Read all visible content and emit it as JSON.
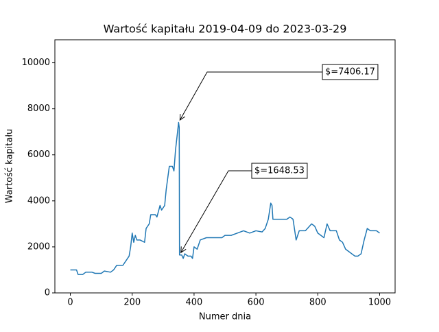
{
  "chart_data": {
    "type": "line",
    "title": "Wartość kapitału 2019-04-09 do 2023-03-29",
    "xlabel": "Numer dnia",
    "ylabel": "Wartość kapitału",
    "x": [
      0,
      20,
      25,
      40,
      50,
      70,
      80,
      100,
      110,
      130,
      140,
      150,
      170,
      180,
      190,
      195,
      200,
      205,
      210,
      215,
      225,
      240,
      245,
      255,
      260,
      275,
      280,
      290,
      295,
      305,
      310,
      315,
      320,
      330,
      335,
      340,
      345,
      350,
      352,
      353,
      360,
      365,
      370,
      380,
      390,
      395,
      400,
      410,
      420,
      440,
      480,
      490,
      500,
      520,
      540,
      560,
      580,
      600,
      620,
      630,
      640,
      648,
      652,
      655,
      700,
      710,
      720,
      730,
      740,
      760,
      780,
      790,
      800,
      820,
      830,
      840,
      860,
      870,
      880,
      890,
      900,
      910,
      920,
      930,
      940,
      950,
      960,
      970,
      990,
      1000
    ],
    "series": [
      {
        "name": "Wartość kapitału",
        "color": "#1f77b4",
        "values": [
          1000,
          1000,
          800,
          800,
          900,
          900,
          850,
          850,
          950,
          900,
          1000,
          1200,
          1200,
          1400,
          1600,
          2000,
          2600,
          2200,
          2500,
          2300,
          2300,
          2200,
          2800,
          3000,
          3400,
          3400,
          3300,
          3800,
          3600,
          3800,
          4500,
          5000,
          5500,
          5500,
          5300,
          6200,
          6800,
          7406.17,
          7200,
          1648.53,
          1648,
          1500,
          1700,
          1600,
          1600,
          1500,
          2000,
          1900,
          2300,
          2400,
          2400,
          2400,
          2500,
          2500,
          2600,
          2700,
          2600,
          2700,
          2650,
          2800,
          3200,
          3900,
          3800,
          3200,
          3200,
          3300,
          3200,
          2300,
          2700,
          2700,
          3000,
          2900,
          2600,
          2400,
          3000,
          2700,
          2700,
          2300,
          2200,
          1900,
          1800,
          1700,
          1600,
          1600,
          1700,
          2300,
          2800,
          2700,
          2700,
          2600
        ]
      }
    ],
    "annotations": [
      {
        "text": "$=7406.17",
        "x": 350,
        "y": 7406.17
      },
      {
        "text": "$=1648.53",
        "x": 353,
        "y": 1648.53
      }
    ],
    "xlim": [
      -50,
      1050
    ],
    "ylim": [
      0,
      11000
    ],
    "xticks": [
      0,
      200,
      400,
      600,
      800,
      1000
    ],
    "yticks": [
      0,
      2000,
      4000,
      6000,
      8000,
      10000
    ]
  }
}
